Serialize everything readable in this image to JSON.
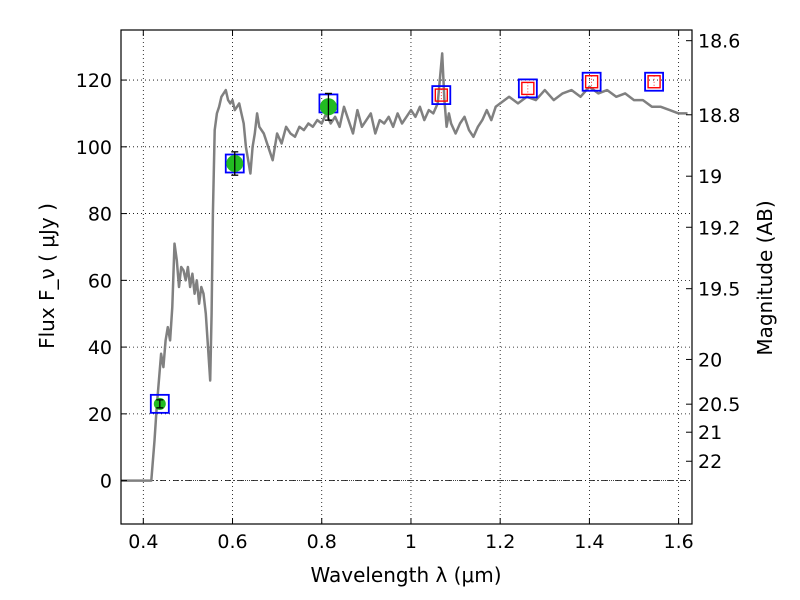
{
  "chart_data": {
    "type": "line",
    "xlabel": "Wavelength  λ (μm)",
    "ylabel_left": "Flux  F_ν  ( μJy )",
    "ylabel_right": "Magnitude (AB)",
    "xlim": [
      0.35,
      1.63
    ],
    "ylim": [
      -13,
      135
    ],
    "grid": true,
    "x_ticks": [
      0.4,
      0.6,
      0.8,
      1.0,
      1.2,
      1.4,
      1.6
    ],
    "x_tick_labels": [
      "0.4",
      "0.6",
      "0.8",
      "1",
      "1.2",
      "1.4",
      "1.6"
    ],
    "y_ticks": [
      0,
      20,
      40,
      60,
      80,
      100,
      120
    ],
    "y_tick_labels": [
      "0",
      "20",
      "40",
      "60",
      "80",
      "100",
      "120"
    ],
    "right_ticks": [
      {
        "label": "18.6",
        "flux": 131.8
      },
      {
        "label": "18.8",
        "flux": 109.6
      },
      {
        "label": "19",
        "flux": 91.2
      },
      {
        "label": "19.2",
        "flux": 75.9
      },
      {
        "label": "19.5",
        "flux": 57.5
      },
      {
        "label": "20",
        "flux": 36.3
      },
      {
        "label": "20.5",
        "flux": 22.9
      },
      {
        "label": "21",
        "flux": 14.5
      },
      {
        "label": "22",
        "flux": 5.8
      }
    ],
    "colors": {
      "spectrum": "#808080",
      "model_box": "#0000ff",
      "obs_point": "#22bb22",
      "upper_box": "#ff0000",
      "errorbar": "#000000",
      "grid": "#000000",
      "zero_line": "#000000"
    },
    "series": [
      {
        "kind": "spectrum",
        "x": [
          0.35,
          0.418,
          0.425,
          0.43,
          0.435,
          0.44,
          0.445,
          0.45,
          0.455,
          0.46,
          0.465,
          0.47,
          0.475,
          0.48,
          0.485,
          0.49,
          0.495,
          0.5,
          0.505,
          0.51,
          0.515,
          0.52,
          0.525,
          0.53,
          0.535,
          0.54,
          0.545,
          0.55,
          0.553,
          0.556,
          0.56,
          0.565,
          0.57,
          0.575,
          0.58,
          0.585,
          0.59,
          0.595,
          0.6,
          0.605,
          0.61,
          0.615,
          0.62,
          0.625,
          0.63,
          0.64,
          0.645,
          0.65,
          0.655,
          0.66,
          0.67,
          0.68,
          0.69,
          0.7,
          0.71,
          0.72,
          0.73,
          0.74,
          0.75,
          0.76,
          0.77,
          0.78,
          0.79,
          0.8,
          0.81,
          0.82,
          0.83,
          0.84,
          0.85,
          0.86,
          0.87,
          0.88,
          0.89,
          0.9,
          0.91,
          0.92,
          0.93,
          0.94,
          0.95,
          0.96,
          0.97,
          0.98,
          0.99,
          1.0,
          1.01,
          1.02,
          1.03,
          1.04,
          1.05,
          1.06,
          1.07,
          1.075,
          1.08,
          1.085,
          1.09,
          1.1,
          1.11,
          1.12,
          1.13,
          1.14,
          1.15,
          1.16,
          1.17,
          1.18,
          1.19,
          1.2,
          1.22,
          1.24,
          1.26,
          1.28,
          1.3,
          1.32,
          1.34,
          1.36,
          1.38,
          1.4,
          1.42,
          1.44,
          1.46,
          1.48,
          1.5,
          1.52,
          1.54,
          1.56,
          1.58,
          1.6,
          1.62
        ],
        "y": [
          0,
          0,
          12,
          22,
          30,
          38,
          34,
          42,
          46,
          42,
          52,
          71,
          66,
          58,
          64,
          63,
          60,
          64,
          58,
          62,
          56,
          60,
          53,
          58,
          56,
          50,
          40,
          30,
          50,
          80,
          105,
          110,
          112,
          115,
          116,
          117,
          114,
          113,
          114,
          111,
          112,
          113,
          110,
          107,
          100,
          92,
          100,
          104,
          110,
          106,
          104,
          100,
          96,
          104,
          101,
          106,
          104,
          103,
          106,
          105,
          107,
          106,
          108,
          107,
          110,
          107,
          109,
          106,
          112,
          108,
          104,
          111,
          106,
          108,
          110,
          104,
          108,
          107,
          109,
          106,
          110,
          107,
          109,
          111,
          109,
          112,
          108,
          111,
          110,
          113,
          128,
          114,
          106,
          110,
          107,
          104,
          107,
          109,
          105,
          103,
          106,
          108,
          111,
          108,
          112,
          113,
          115,
          113,
          115,
          114,
          117,
          114,
          116,
          117,
          115,
          118,
          116,
          117,
          115,
          116,
          114,
          114,
          112,
          112,
          111,
          110,
          110
        ]
      },
      {
        "kind": "model_boxes",
        "x": [
          0.437,
          0.605,
          0.815,
          1.068,
          1.262,
          1.405,
          1.545
        ],
        "y": [
          23,
          95,
          113,
          115.5,
          117.5,
          119.5,
          119.5
        ]
      },
      {
        "kind": "upper_limits",
        "x": [
          1.068,
          1.262,
          1.405,
          1.545
        ],
        "y": [
          115.5,
          117.5,
          119.5,
          119.5
        ]
      },
      {
        "kind": "observed",
        "x": [
          0.437,
          0.605,
          0.815
        ],
        "y": [
          23,
          95,
          112
        ],
        "err": [
          1.2,
          3.5,
          4
        ]
      }
    ]
  }
}
